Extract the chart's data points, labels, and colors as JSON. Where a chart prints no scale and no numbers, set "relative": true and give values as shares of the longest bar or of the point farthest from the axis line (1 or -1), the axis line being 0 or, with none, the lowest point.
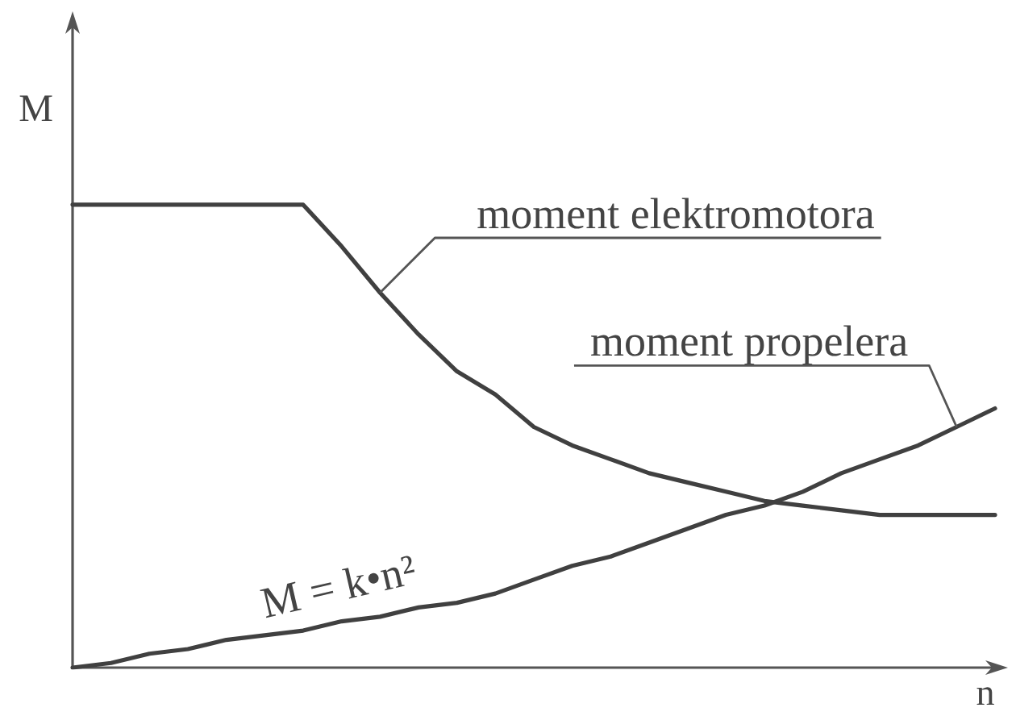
{
  "chart_data": {
    "type": "line",
    "relative": true,
    "xlabel": "n",
    "ylabel": "M",
    "categories": [
      null,
      null,
      null,
      null,
      null,
      null,
      null,
      null,
      null,
      null,
      null,
      null,
      null,
      null,
      null,
      null,
      null,
      null,
      null,
      null,
      null,
      null,
      null,
      null,
      null
    ],
    "series": [
      {
        "name": "moment elektromotora",
        "color": "#404040",
        "values": [
          1,
          1,
          1,
          1,
          1,
          1,
          1,
          0.91,
          0.81,
          0.72,
          0.64,
          0.59,
          0.52,
          0.48,
          0.45,
          0.42,
          0.4,
          0.38,
          0.36,
          0.35,
          0.34,
          0.33,
          0.33,
          0.33,
          0.33
        ]
      },
      {
        "name": "moment propelera",
        "color": "#404040",
        "values": [
          0,
          0.01,
          0.03,
          0.04,
          0.06,
          0.07,
          0.08,
          0.1,
          0.11,
          0.13,
          0.14,
          0.16,
          0.19,
          0.22,
          0.24,
          0.27,
          0.3,
          0.33,
          0.35,
          0.38,
          0.42,
          0.45,
          0.48,
          0.52,
          0.56
        ]
      }
    ],
    "annotations": [
      "M = k•n²"
    ],
    "marker": "none",
    "line_style": "solid"
  }
}
